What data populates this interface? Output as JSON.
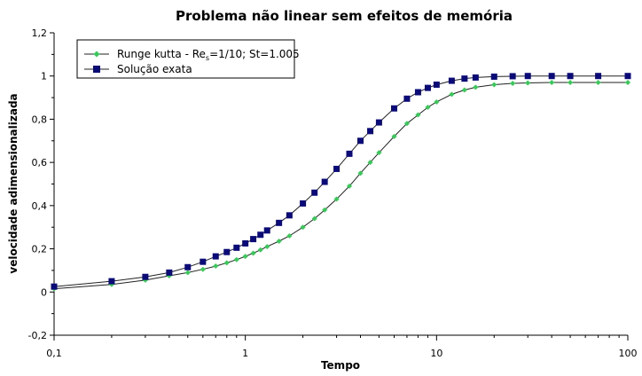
{
  "chart_data": {
    "type": "scatter",
    "title": "Problema não linear sem efeitos de memória",
    "xlabel": "Tempo",
    "ylabel": "velocidade adimensionalizada",
    "x_scale": "log",
    "xlim": [
      0.1,
      100
    ],
    "ylim": [
      -0.2,
      1.2
    ],
    "x_ticks": [
      "0,1",
      "1",
      "10",
      "100"
    ],
    "y_ticks": [
      "-0,2",
      "0",
      "0,2",
      "0,4",
      "0,6",
      "0,8",
      "1",
      "1,2"
    ],
    "grid": false,
    "legend_position": "top-left",
    "series": [
      {
        "name": "Runge kutta - Re",
        "name_sub": "s",
        "name_suffix": "=1/10; St=1.005",
        "marker": "diamond",
        "color": "#33cc55",
        "line_color": "#222222",
        "x": [
          0.1,
          0.2,
          0.3,
          0.4,
          0.5,
          0.6,
          0.7,
          0.8,
          0.9,
          1.0,
          1.1,
          1.2,
          1.3,
          1.5,
          1.7,
          2.0,
          2.3,
          2.6,
          3.0,
          3.5,
          4.0,
          4.5,
          5.0,
          6.0,
          7.0,
          8.0,
          9.0,
          10.0,
          12.0,
          14.0,
          16.0,
          20.0,
          25.0,
          30.0,
          40.0,
          50.0,
          70.0,
          100.0
        ],
        "y": [
          0.015,
          0.035,
          0.055,
          0.075,
          0.09,
          0.105,
          0.12,
          0.135,
          0.15,
          0.165,
          0.18,
          0.195,
          0.21,
          0.235,
          0.26,
          0.3,
          0.34,
          0.38,
          0.43,
          0.49,
          0.55,
          0.6,
          0.645,
          0.72,
          0.78,
          0.82,
          0.855,
          0.88,
          0.915,
          0.935,
          0.948,
          0.96,
          0.966,
          0.968,
          0.97,
          0.97,
          0.97,
          0.97
        ]
      },
      {
        "name": "Solução exata",
        "marker": "square",
        "color": "#0a0a7a",
        "line_color": "#222222",
        "x": [
          0.1,
          0.2,
          0.3,
          0.4,
          0.5,
          0.6,
          0.7,
          0.8,
          0.9,
          1.0,
          1.1,
          1.2,
          1.3,
          1.5,
          1.7,
          2.0,
          2.3,
          2.6,
          3.0,
          3.5,
          4.0,
          4.5,
          5.0,
          6.0,
          7.0,
          8.0,
          9.0,
          10.0,
          12.0,
          14.0,
          16.0,
          20.0,
          25.0,
          30.0,
          40.0,
          50.0,
          70.0,
          100.0
        ],
        "y": [
          0.025,
          0.05,
          0.07,
          0.09,
          0.115,
          0.14,
          0.165,
          0.185,
          0.205,
          0.225,
          0.245,
          0.265,
          0.285,
          0.32,
          0.355,
          0.41,
          0.46,
          0.51,
          0.57,
          0.64,
          0.7,
          0.745,
          0.785,
          0.85,
          0.895,
          0.925,
          0.945,
          0.96,
          0.978,
          0.988,
          0.993,
          0.997,
          0.999,
          1.0,
          1.0,
          1.0,
          1.0,
          1.0
        ]
      }
    ]
  }
}
